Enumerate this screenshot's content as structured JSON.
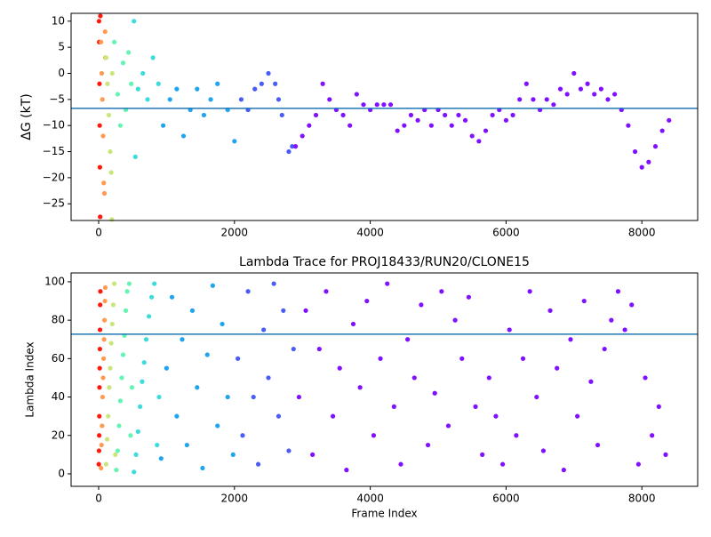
{
  "chart_data": [
    {
      "type": "scatter",
      "ylabel": "ΔG (kT)",
      "xlim": [
        -406,
        8822
      ],
      "xticks": [
        0,
        2000,
        4000,
        6000,
        8000
      ],
      "ylim": [
        -28.2,
        11.5
      ],
      "yticks": [
        {
          "value": -25,
          "label": "−25"
        },
        {
          "value": -20,
          "label": "−20"
        },
        {
          "value": -15,
          "label": "−15"
        },
        {
          "value": -10,
          "label": "−10"
        },
        {
          "value": -5,
          "label": "−5"
        },
        0,
        5,
        10
      ],
      "hline": -6.7,
      "hline_color": "#1f77b4",
      "series": [
        {
          "color": "#ff1a0d",
          "x": [
            5,
            8,
            12,
            15,
            18,
            22,
            25
          ],
          "values": [
            10,
            6,
            -2,
            -10,
            -18,
            -27.5,
            11
          ]
        },
        {
          "color": "#ff9a50",
          "x": [
            35,
            45,
            55,
            65,
            75,
            85,
            95,
            100
          ],
          "values": [
            6,
            0,
            -5,
            -12,
            -21,
            -23,
            8,
            3
          ]
        },
        {
          "color": "#c8e67a",
          "x": [
            110,
            130,
            150,
            170,
            185,
            195,
            200
          ],
          "values": [
            3,
            -2,
            -8,
            -15,
            -19,
            -28,
            0
          ]
        },
        {
          "color": "#64f5b4",
          "x": [
            230,
            280,
            320,
            360,
            400,
            440,
            480
          ],
          "values": [
            6,
            -4,
            -10,
            2,
            -7,
            4,
            -2
          ]
        },
        {
          "color": "#3cdcdc",
          "x": [
            520,
            540,
            580,
            650,
            720,
            800,
            880
          ],
          "values": [
            10,
            -16,
            -3,
            0,
            -5,
            3,
            -2
          ]
        },
        {
          "color": "#1ea5ee",
          "x": [
            950,
            1050,
            1150,
            1250,
            1350,
            1450,
            1550,
            1650,
            1750,
            1900,
            2000
          ],
          "values": [
            -10,
            -5,
            -3,
            -12,
            -7,
            -3,
            -8,
            -5,
            -2,
            -7,
            -13
          ]
        },
        {
          "color": "#4a5cf6",
          "x": [
            2100,
            2200,
            2300,
            2400,
            2500,
            2600,
            2650,
            2700,
            2800,
            2850
          ],
          "values": [
            -5,
            -7,
            -3,
            -2,
            0,
            -2,
            -5,
            -8,
            -15,
            -14
          ]
        },
        {
          "color": "#8010ff",
          "x": [
            2900,
            3000,
            3100,
            3200,
            3300,
            3400,
            3500,
            3600,
            3700,
            3800,
            3900,
            4000,
            4100,
            4200,
            4300,
            4400,
            4500,
            4600,
            4700,
            4800,
            4900,
            5000,
            5100,
            5200,
            5300,
            5400,
            5500,
            5600,
            5700,
            5800,
            5900,
            6000,
            6100,
            6200,
            6300,
            6400,
            6500,
            6600,
            6700,
            6800,
            6900,
            7000,
            7100,
            7200,
            7300,
            7400,
            7500,
            7600,
            7700,
            7800,
            7900,
            8000,
            8100,
            8200,
            8300,
            8400
          ],
          "values": [
            -14,
            -12,
            -10,
            -8,
            -2,
            -5,
            -7,
            -8,
            -10,
            -4,
            -6,
            -7,
            -6,
            -6,
            -6,
            -11,
            -10,
            -8,
            -9,
            -7,
            -10,
            -7,
            -8,
            -10,
            -8,
            -9,
            -12,
            -13,
            -11,
            -8,
            -7,
            -9,
            -8,
            -5,
            -2,
            -5,
            -7,
            -5,
            -6,
            -3,
            -4,
            0,
            -3,
            -2,
            -4,
            -3,
            -5,
            -4,
            -7,
            -10,
            -15,
            -18,
            -17,
            -14,
            -11,
            -9
          ]
        }
      ]
    },
    {
      "type": "scatter",
      "title": "Lambda Trace for PROJ18433/RUN20/CLONE15",
      "xlabel": "Frame Index",
      "ylabel": "Lambda Index",
      "xlim": [
        -406,
        8822
      ],
      "xticks": [
        0,
        2000,
        4000,
        6000,
        8000
      ],
      "ylim": [
        -6.5,
        104.6
      ],
      "yticks": [
        0,
        20,
        40,
        60,
        80,
        100
      ],
      "hline": 72.7,
      "hline_color": "#1f77b4",
      "series": [
        {
          "color": "#ff1a0d",
          "x": [
            2,
            5,
            8,
            10,
            12,
            15,
            18,
            20,
            22,
            25
          ],
          "values": [
            5,
            12,
            20,
            30,
            45,
            55,
            65,
            75,
            88,
            95
          ]
        },
        {
          "color": "#ff9a50",
          "x": [
            35,
            42,
            50,
            58,
            65,
            72,
            80,
            86,
            92,
            98
          ],
          "values": [
            3,
            15,
            25,
            40,
            50,
            60,
            70,
            80,
            90,
            97
          ]
        },
        {
          "color": "#c8e67a",
          "x": [
            110,
            125,
            140,
            155,
            170,
            185,
            200,
            215,
            230,
            245
          ],
          "values": [
            5,
            18,
            30,
            45,
            55,
            68,
            78,
            88,
            99,
            10
          ]
        },
        {
          "color": "#64f5b4",
          "x": [
            260,
            280,
            300,
            320,
            340,
            360,
            380,
            400,
            420,
            450,
            470,
            490
          ],
          "values": [
            2,
            12,
            25,
            38,
            50,
            62,
            72,
            85,
            95,
            99,
            20,
            45
          ]
        },
        {
          "color": "#3cdcdc",
          "x": [
            520,
            550,
            580,
            610,
            640,
            670,
            700,
            740,
            780,
            820,
            860,
            890
          ],
          "values": [
            1,
            10,
            22,
            35,
            48,
            58,
            70,
            82,
            92,
            99,
            15,
            40
          ]
        },
        {
          "color": "#1ea5ee",
          "x": [
            920,
            1000,
            1080,
            1150,
            1230,
            1300,
            1380,
            1450,
            1530,
            1600,
            1680,
            1750,
            1820,
            1900,
            1980
          ],
          "values": [
            8,
            55,
            92,
            30,
            70,
            15,
            85,
            45,
            3,
            62,
            98,
            25,
            78,
            40,
            10
          ]
        },
        {
          "color": "#4a5cf6",
          "x": [
            2050,
            2120,
            2200,
            2280,
            2350,
            2430,
            2500,
            2580,
            2650,
            2720,
            2800,
            2870
          ],
          "values": [
            60,
            20,
            95,
            40,
            5,
            75,
            50,
            99,
            30,
            85,
            12,
            65
          ]
        },
        {
          "color": "#8010ff",
          "x": [
            2950,
            3050,
            3150,
            3250,
            3350,
            3450,
            3550,
            3650,
            3750,
            3850,
            3950,
            4050,
            4150,
            4250,
            4350,
            4450,
            4550,
            4650,
            4750,
            4850,
            4950,
            5050,
            5150,
            5250,
            5350,
            5450,
            5550,
            5650,
            5750,
            5850,
            5950,
            6050,
            6150,
            6250,
            6350,
            6450,
            6550,
            6650,
            6750,
            6850,
            6950,
            7050,
            7150,
            7250,
            7350,
            7450,
            7550,
            7650,
            7750,
            7850,
            7950,
            8050,
            8150,
            8250,
            8350
          ],
          "values": [
            40,
            85,
            10,
            65,
            95,
            30,
            55,
            2,
            78,
            45,
            90,
            20,
            60,
            99,
            35,
            5,
            70,
            50,
            88,
            15,
            42,
            95,
            25,
            80,
            60,
            92,
            35,
            10,
            50,
            30,
            5,
            75,
            20,
            60,
            95,
            40,
            12,
            85,
            55,
            2,
            70,
            30,
            90,
            48,
            15,
            65,
            80,
            95,
            75,
            88,
            5,
            50,
            20,
            35,
            10
          ]
        }
      ]
    }
  ]
}
